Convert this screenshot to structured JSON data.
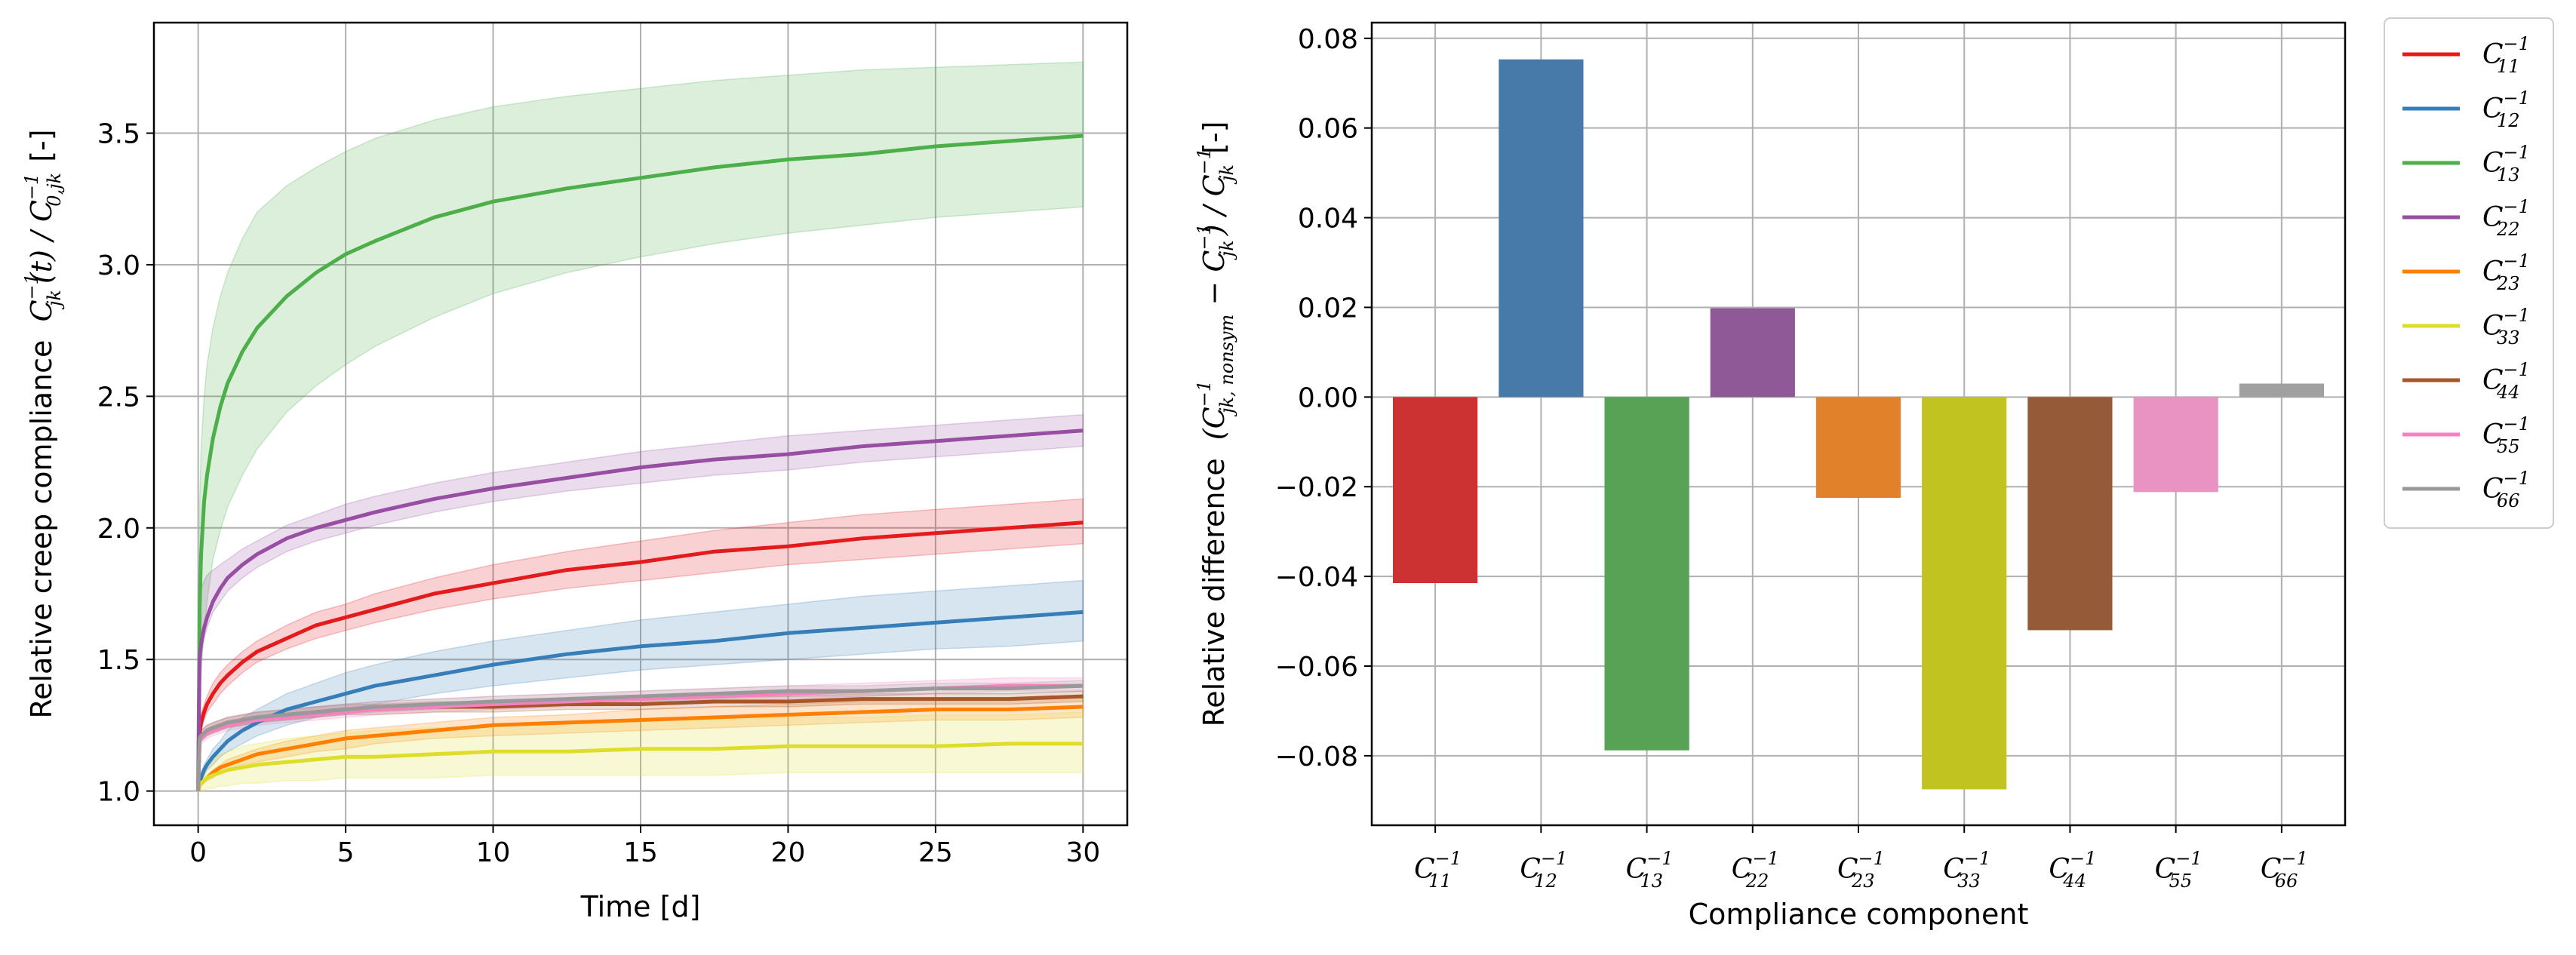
{
  "chart_data": [
    {
      "type": "line",
      "title": "",
      "xlabel": "Time [d]",
      "ylabel_text": "Relative creep compliance",
      "ylabel_math": {
        "base": "C",
        "sub_num": "jk",
        "sup_num": "−1",
        "sep": "(t) / ",
        "sub_den": "0,jk",
        "sup_den": "−1",
        "unit": "[-]"
      },
      "xlim": [
        -1.5,
        31.5
      ],
      "ylim": [
        0.87,
        3.92
      ],
      "xticks": [
        0,
        5,
        10,
        15,
        20,
        25,
        30
      ],
      "xtick_labels": [
        "0",
        "5",
        "10",
        "15",
        "20",
        "25",
        "30"
      ],
      "yticks": [
        1.0,
        1.5,
        2.0,
        2.5,
        3.0,
        3.5
      ],
      "ytick_labels": [
        "1.0",
        "1.5",
        "2.0",
        "2.5",
        "3.0",
        "3.5"
      ],
      "grid": true,
      "x": [
        0,
        0.05,
        0.1,
        0.2,
        0.3,
        0.5,
        0.75,
        1,
        1.5,
        2,
        3,
        4,
        5,
        6,
        8,
        10,
        12.5,
        15,
        17.5,
        20,
        22.5,
        25,
        27.5,
        30
      ],
      "series": [
        {
          "name": "C11",
          "color": "#e41a1c",
          "values": [
            1.0,
            1.22,
            1.26,
            1.3,
            1.33,
            1.37,
            1.41,
            1.44,
            1.49,
            1.53,
            1.58,
            1.63,
            1.66,
            1.69,
            1.75,
            1.79,
            1.84,
            1.87,
            1.91,
            1.93,
            1.96,
            1.98,
            2.0,
            2.02
          ],
          "lower": [
            1.0,
            1.19,
            1.23,
            1.27,
            1.3,
            1.33,
            1.37,
            1.4,
            1.45,
            1.49,
            1.54,
            1.58,
            1.61,
            1.64,
            1.69,
            1.73,
            1.77,
            1.8,
            1.83,
            1.86,
            1.88,
            1.9,
            1.92,
            1.94
          ],
          "upper": [
            1.0,
            1.25,
            1.29,
            1.33,
            1.36,
            1.41,
            1.45,
            1.48,
            1.53,
            1.57,
            1.63,
            1.68,
            1.71,
            1.75,
            1.81,
            1.86,
            1.91,
            1.95,
            1.99,
            2.02,
            2.05,
            2.07,
            2.09,
            2.11
          ]
        },
        {
          "name": "C12",
          "color": "#377eb8",
          "values": [
            1.0,
            1.03,
            1.05,
            1.08,
            1.1,
            1.13,
            1.16,
            1.19,
            1.23,
            1.26,
            1.31,
            1.34,
            1.37,
            1.4,
            1.44,
            1.48,
            1.52,
            1.55,
            1.57,
            1.6,
            1.62,
            1.64,
            1.66,
            1.68
          ],
          "lower": [
            1.0,
            1.02,
            1.04,
            1.06,
            1.08,
            1.1,
            1.13,
            1.15,
            1.18,
            1.21,
            1.25,
            1.28,
            1.31,
            1.33,
            1.37,
            1.4,
            1.43,
            1.46,
            1.48,
            1.5,
            1.52,
            1.54,
            1.55,
            1.57
          ],
          "upper": [
            1.0,
            1.05,
            1.07,
            1.1,
            1.12,
            1.16,
            1.19,
            1.23,
            1.28,
            1.31,
            1.37,
            1.41,
            1.45,
            1.48,
            1.53,
            1.57,
            1.61,
            1.65,
            1.68,
            1.71,
            1.74,
            1.76,
            1.78,
            1.8
          ]
        },
        {
          "name": "C13",
          "color": "#4daf4a",
          "values": [
            1.0,
            1.7,
            1.9,
            2.1,
            2.2,
            2.34,
            2.46,
            2.55,
            2.67,
            2.76,
            2.88,
            2.97,
            3.04,
            3.09,
            3.18,
            3.24,
            3.29,
            3.33,
            3.37,
            3.4,
            3.42,
            3.45,
            3.47,
            3.49
          ],
          "lower": [
            1.0,
            1.35,
            1.45,
            1.6,
            1.72,
            1.88,
            1.99,
            2.08,
            2.2,
            2.3,
            2.44,
            2.54,
            2.62,
            2.69,
            2.8,
            2.89,
            2.97,
            3.03,
            3.08,
            3.12,
            3.15,
            3.18,
            3.2,
            3.22
          ],
          "upper": [
            1.0,
            2.1,
            2.3,
            2.5,
            2.62,
            2.76,
            2.88,
            2.97,
            3.1,
            3.2,
            3.3,
            3.37,
            3.43,
            3.48,
            3.55,
            3.6,
            3.64,
            3.67,
            3.7,
            3.72,
            3.74,
            3.75,
            3.76,
            3.77
          ]
        },
        {
          "name": "C22",
          "color": "#984ea3",
          "values": [
            1.0,
            1.5,
            1.56,
            1.62,
            1.66,
            1.72,
            1.77,
            1.81,
            1.86,
            1.9,
            1.96,
            2.0,
            2.03,
            2.06,
            2.11,
            2.15,
            2.19,
            2.23,
            2.26,
            2.28,
            2.31,
            2.33,
            2.35,
            2.37
          ],
          "lower": [
            1.0,
            1.46,
            1.52,
            1.58,
            1.62,
            1.68,
            1.72,
            1.76,
            1.81,
            1.85,
            1.91,
            1.95,
            1.98,
            2.01,
            2.06,
            2.1,
            2.14,
            2.17,
            2.2,
            2.22,
            2.25,
            2.27,
            2.29,
            2.31
          ],
          "upper": [
            1.0,
            1.73,
            1.77,
            1.8,
            1.82,
            1.84,
            1.86,
            1.88,
            1.92,
            1.95,
            2.01,
            2.05,
            2.09,
            2.12,
            2.17,
            2.21,
            2.25,
            2.29,
            2.32,
            2.35,
            2.37,
            2.39,
            2.41,
            2.43
          ]
        },
        {
          "name": "C23",
          "color": "#ff7f00",
          "values": [
            1.0,
            1.02,
            1.03,
            1.04,
            1.05,
            1.07,
            1.09,
            1.1,
            1.12,
            1.14,
            1.16,
            1.18,
            1.2,
            1.21,
            1.23,
            1.25,
            1.26,
            1.27,
            1.28,
            1.29,
            1.3,
            1.31,
            1.31,
            1.32
          ],
          "lower": [
            1.0,
            1.01,
            1.02,
            1.03,
            1.04,
            1.05,
            1.07,
            1.08,
            1.1,
            1.11,
            1.13,
            1.15,
            1.16,
            1.18,
            1.2,
            1.21,
            1.22,
            1.23,
            1.24,
            1.25,
            1.26,
            1.27,
            1.27,
            1.28
          ],
          "upper": [
            1.0,
            1.03,
            1.04,
            1.05,
            1.06,
            1.08,
            1.1,
            1.12,
            1.14,
            1.16,
            1.19,
            1.21,
            1.23,
            1.24,
            1.26,
            1.28,
            1.29,
            1.31,
            1.32,
            1.33,
            1.34,
            1.35,
            1.35,
            1.36
          ]
        },
        {
          "name": "C33",
          "color": "#dede2a",
          "values": [
            1.0,
            1.02,
            1.03,
            1.04,
            1.05,
            1.06,
            1.07,
            1.08,
            1.09,
            1.1,
            1.11,
            1.12,
            1.13,
            1.13,
            1.14,
            1.15,
            1.15,
            1.16,
            1.16,
            1.17,
            1.17,
            1.17,
            1.18,
            1.18
          ],
          "lower": [
            1.0,
            1.0,
            1.0,
            1.0,
            1.01,
            1.01,
            1.02,
            1.02,
            1.03,
            1.03,
            1.04,
            1.04,
            1.05,
            1.05,
            1.05,
            1.06,
            1.06,
            1.06,
            1.06,
            1.07,
            1.07,
            1.07,
            1.07,
            1.07
          ],
          "upper": [
            1.0,
            1.04,
            1.06,
            1.08,
            1.1,
            1.12,
            1.14,
            1.15,
            1.17,
            1.18,
            1.2,
            1.21,
            1.22,
            1.23,
            1.24,
            1.25,
            1.26,
            1.27,
            1.27,
            1.28,
            1.28,
            1.29,
            1.29,
            1.3
          ]
        },
        {
          "name": "C44",
          "color": "#a65628",
          "values": [
            1.0,
            1.2,
            1.21,
            1.22,
            1.23,
            1.24,
            1.25,
            1.26,
            1.27,
            1.28,
            1.29,
            1.3,
            1.31,
            1.31,
            1.32,
            1.32,
            1.33,
            1.33,
            1.34,
            1.34,
            1.35,
            1.35,
            1.35,
            1.36
          ],
          "lower": [
            1.0,
            1.18,
            1.19,
            1.2,
            1.21,
            1.22,
            1.23,
            1.24,
            1.25,
            1.26,
            1.27,
            1.28,
            1.29,
            1.29,
            1.3,
            1.3,
            1.31,
            1.31,
            1.32,
            1.32,
            1.33,
            1.33,
            1.33,
            1.34
          ],
          "upper": [
            1.0,
            1.22,
            1.23,
            1.24,
            1.25,
            1.26,
            1.27,
            1.28,
            1.29,
            1.3,
            1.31,
            1.32,
            1.33,
            1.33,
            1.34,
            1.34,
            1.35,
            1.35,
            1.36,
            1.36,
            1.37,
            1.37,
            1.37,
            1.38
          ]
        },
        {
          "name": "C55",
          "color": "#f781bf",
          "values": [
            1.0,
            1.19,
            1.2,
            1.21,
            1.22,
            1.23,
            1.24,
            1.25,
            1.26,
            1.27,
            1.28,
            1.29,
            1.3,
            1.31,
            1.32,
            1.33,
            1.34,
            1.35,
            1.36,
            1.37,
            1.38,
            1.39,
            1.4,
            1.4
          ],
          "lower": [
            1.0,
            1.17,
            1.18,
            1.19,
            1.2,
            1.21,
            1.22,
            1.23,
            1.24,
            1.25,
            1.26,
            1.27,
            1.28,
            1.29,
            1.3,
            1.31,
            1.32,
            1.33,
            1.34,
            1.35,
            1.36,
            1.37,
            1.38,
            1.38
          ],
          "upper": [
            1.0,
            1.22,
            1.23,
            1.24,
            1.25,
            1.26,
            1.27,
            1.28,
            1.29,
            1.3,
            1.31,
            1.32,
            1.33,
            1.34,
            1.35,
            1.36,
            1.37,
            1.38,
            1.39,
            1.4,
            1.41,
            1.42,
            1.43,
            1.43
          ]
        },
        {
          "name": "C66",
          "color": "#999999",
          "values": [
            1.0,
            1.2,
            1.21,
            1.22,
            1.23,
            1.24,
            1.25,
            1.26,
            1.27,
            1.28,
            1.29,
            1.3,
            1.31,
            1.32,
            1.33,
            1.34,
            1.35,
            1.36,
            1.37,
            1.38,
            1.38,
            1.39,
            1.39,
            1.4
          ],
          "lower": [
            1.0,
            1.18,
            1.19,
            1.2,
            1.21,
            1.22,
            1.23,
            1.24,
            1.25,
            1.26,
            1.27,
            1.28,
            1.29,
            1.3,
            1.31,
            1.32,
            1.33,
            1.34,
            1.35,
            1.36,
            1.36,
            1.37,
            1.37,
            1.38
          ],
          "upper": [
            1.0,
            1.22,
            1.23,
            1.24,
            1.25,
            1.26,
            1.27,
            1.28,
            1.29,
            1.3,
            1.31,
            1.32,
            1.33,
            1.34,
            1.35,
            1.36,
            1.37,
            1.38,
            1.39,
            1.4,
            1.4,
            1.41,
            1.41,
            1.42
          ]
        }
      ]
    },
    {
      "type": "bar",
      "title": "",
      "xlabel": "Compliance component",
      "ylabel_text": "Relative difference",
      "ylabel_math": {
        "open": "(",
        "base": "C",
        "sub1": "jk, nonsym",
        "sup": "−1",
        "minus": " − ",
        "sub2": "jk",
        "close": ") / ",
        "sub3": "jk",
        "unit": "[-]"
      },
      "categories": [
        "11",
        "12",
        "13",
        "22",
        "23",
        "33",
        "44",
        "55",
        "66"
      ],
      "values": [
        -0.0415,
        0.0753,
        -0.0788,
        0.0198,
        -0.0225,
        -0.0875,
        -0.052,
        -0.0212,
        0.003
      ],
      "colors": [
        "#cc3232",
        "#477aa8",
        "#58a256",
        "#8f5897",
        "#e1822a",
        "#c1c320",
        "#955a38",
        "#e893c1",
        "#a0a0a0"
      ],
      "ylim": [
        -0.0955,
        0.0835
      ],
      "yticks": [
        -0.08,
        -0.06,
        -0.04,
        -0.02,
        0.0,
        0.02,
        0.04,
        0.06,
        0.08
      ],
      "ytick_labels": [
        "−0.08",
        "−0.06",
        "−0.04",
        "−0.02",
        "0.00",
        "0.02",
        "0.04",
        "0.06",
        "0.08"
      ],
      "grid": true,
      "legend": {
        "placement": "outside-right-top",
        "symbol": "C",
        "sup": "−1",
        "entries": [
          "11",
          "12",
          "13",
          "22",
          "23",
          "33",
          "44",
          "55",
          "66"
        ],
        "colors": [
          "#e41a1c",
          "#377eb8",
          "#4daf4a",
          "#984ea3",
          "#ff7f00",
          "#dede2a",
          "#a65628",
          "#f781bf",
          "#999999"
        ]
      }
    }
  ]
}
